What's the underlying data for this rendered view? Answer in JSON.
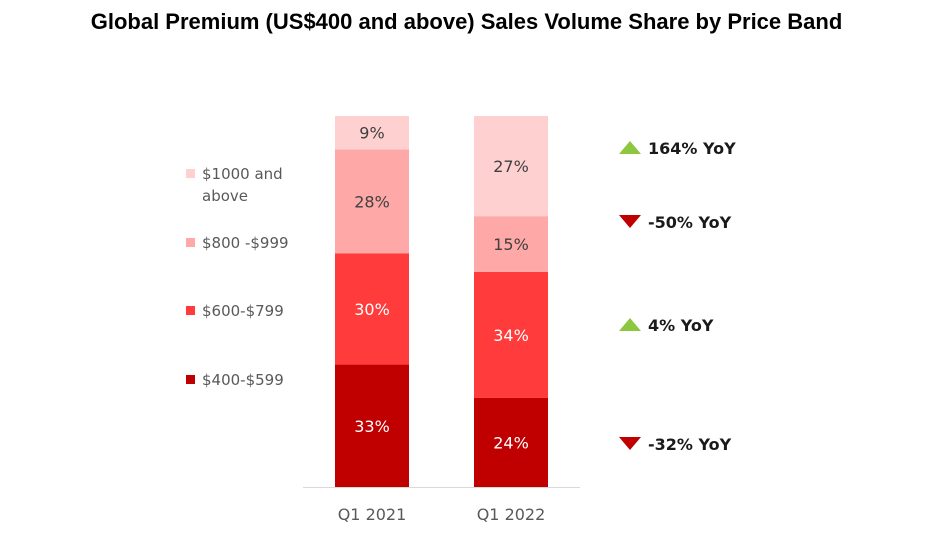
{
  "title": "Global Premium (US$400 and above) Sales Volume Share by Price Band",
  "chart_data": {
    "type": "bar",
    "stacked": true,
    "title": "Global Premium (US$400 and above) Sales Volume Share by Price Band",
    "xlabel": "",
    "ylabel": "",
    "ylim": [
      0,
      100
    ],
    "categories": [
      "Q1 2021",
      "Q1 2022"
    ],
    "series": [
      {
        "name": "$400-$599",
        "values": [
          33,
          24
        ],
        "labels": [
          "33%",
          "24%"
        ],
        "color": "#c00000",
        "label_color": "#ffffff",
        "yoy": "-32% YoY",
        "yoy_direction": "down"
      },
      {
        "name": "$600-$799",
        "values": [
          30,
          34
        ],
        "labels": [
          "30%",
          "34%"
        ],
        "color": "#ff3b3b",
        "label_color": "#ffffff",
        "yoy": "4% YoY",
        "yoy_direction": "up"
      },
      {
        "name": "$800 -$999",
        "values": [
          28,
          15
        ],
        "labels": [
          "28%",
          "15%"
        ],
        "color": "#ffa8a8",
        "label_color": "#404040",
        "yoy": "-50% YoY",
        "yoy_direction": "down"
      },
      {
        "name": "$1000 and above",
        "legend_lines": [
          "$1000 and",
          "above"
        ],
        "values": [
          9,
          27
        ],
        "labels": [
          "9%",
          "27%"
        ],
        "color": "#ffd0d0",
        "label_color": "#404040",
        "yoy": "164% YoY",
        "yoy_direction": "up"
      }
    ],
    "yoy_colors": {
      "up": "#8dc63f",
      "down": "#c00000"
    },
    "legend_position": "left",
    "grid": false
  }
}
